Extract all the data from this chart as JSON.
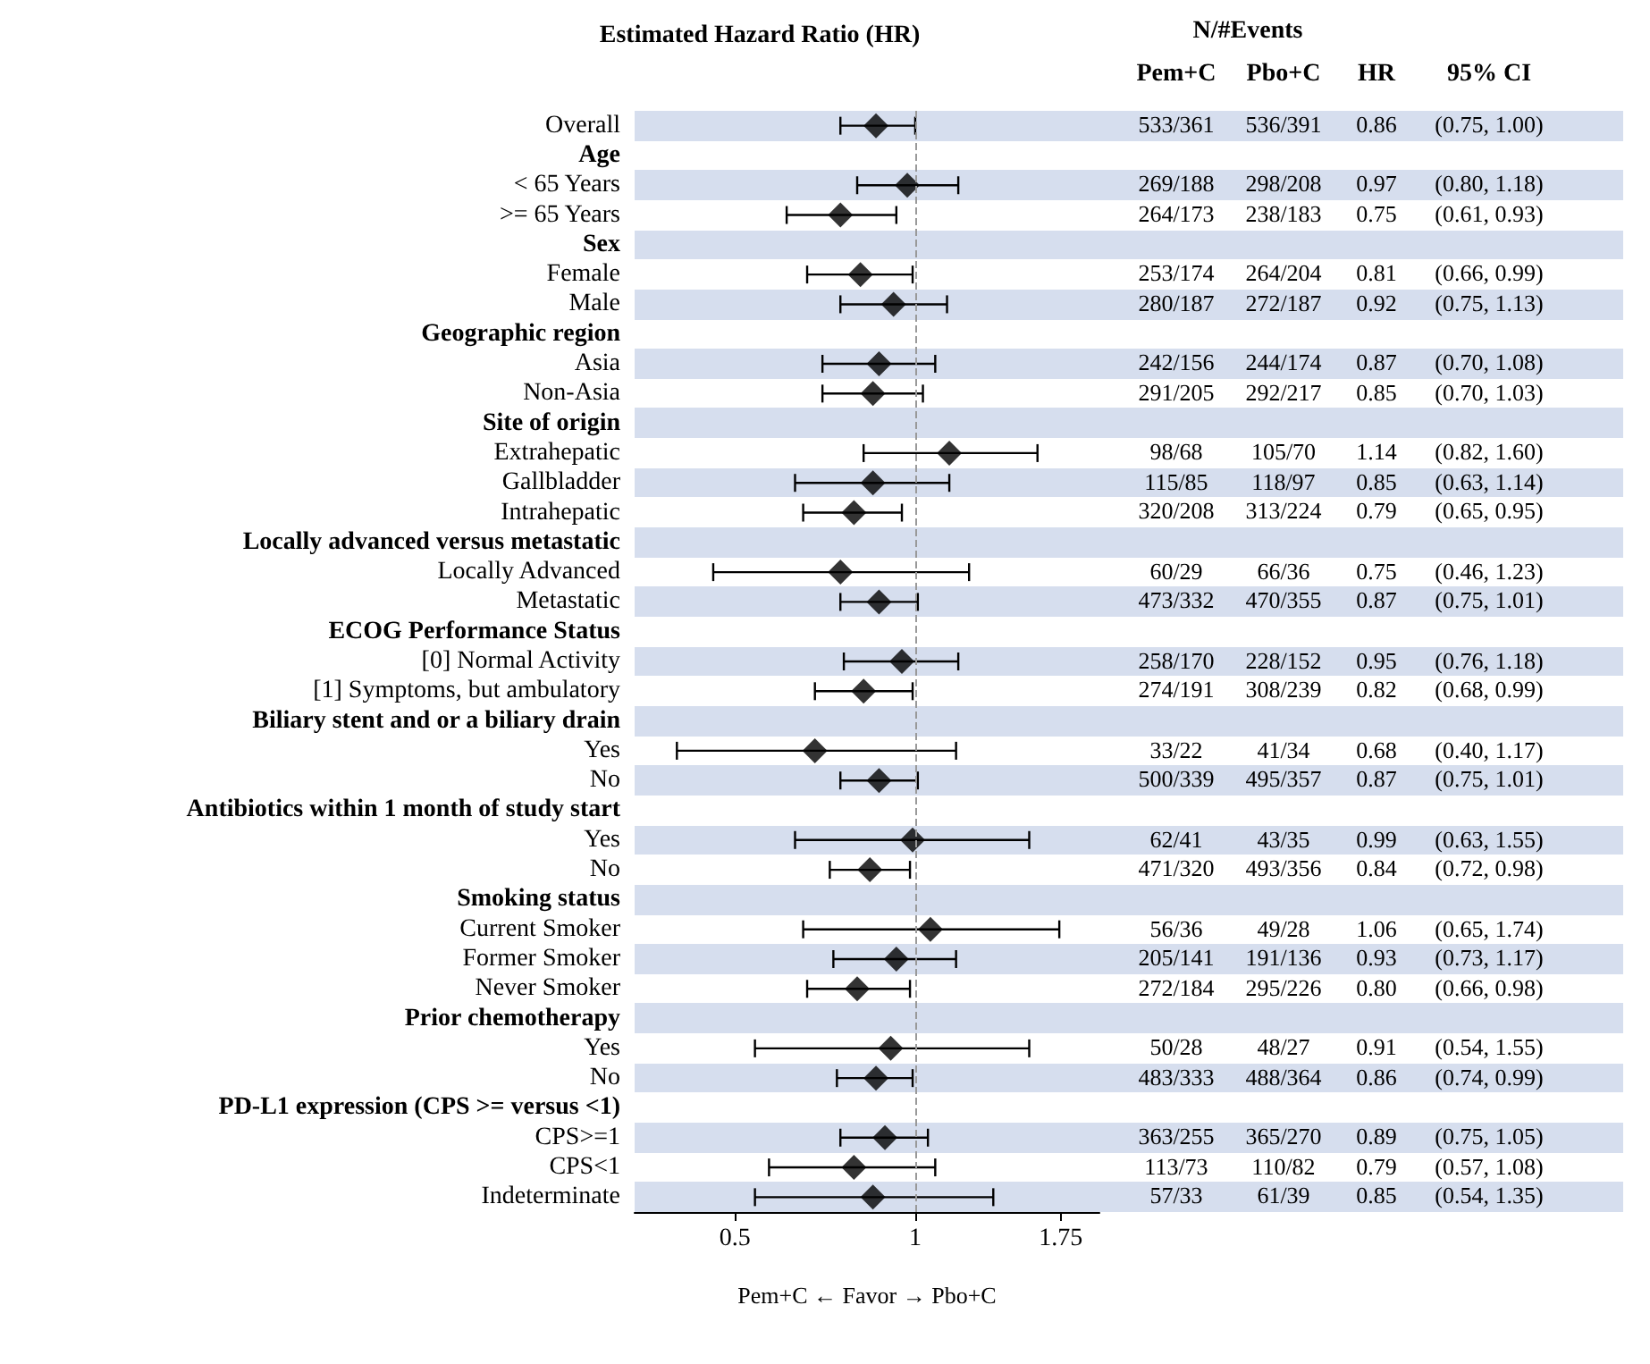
{
  "chart_data": [
    {
      "type": "scatter",
      "title": "Estimated Hazard Ratio (HR)",
      "xlabel": "Pem+C ← Favor → Pbo+C",
      "orientation": "horizontal",
      "log": "x",
      "marker": "diamond",
      "color": "#000000",
      "xlim": [
        0.34,
        2.03
      ],
      "xticks": [
        0.5,
        1,
        1.75
      ],
      "categories": [
        "Overall",
        "Age",
        "< 65 Years",
        ">= 65 Years",
        "Sex",
        "Female",
        "Male",
        "Geographic region",
        "Asia",
        "Non-Asia",
        "Site of origin",
        "Extrahepatic",
        "Gallbladder",
        "Intrahepatic",
        "Locally advanced versus metastatic",
        "Locally Advanced",
        "Metastatic",
        "ECOG Performance Status",
        "[0] Normal Activity",
        "[1] Symptoms, but ambulatory",
        "Biliary stent and or a biliary drain",
        "Yes",
        "No",
        "Antibiotics within 1 month of study start",
        "Yes",
        "No",
        "Smoking status",
        "Current Smoker",
        "Former Smoker",
        "Never Smoker",
        "Prior chemotherapy",
        "Yes",
        "No",
        "PD-L1 expression (CPS >= versus <1)",
        "CPS>=1",
        "CPS<1",
        "Indeterminate"
      ],
      "values": [
        0.86,
        null,
        0.97,
        0.75,
        null,
        0.81,
        0.92,
        null,
        0.87,
        0.85,
        null,
        1.14,
        0.85,
        0.79,
        null,
        0.75,
        0.87,
        null,
        0.95,
        0.82,
        null,
        0.68,
        0.87,
        null,
        0.99,
        0.84,
        null,
        1.06,
        0.93,
        0.8,
        null,
        0.91,
        0.86,
        null,
        0.89,
        0.79,
        0.85
      ],
      "errors": [
        [
          0.75,
          1.0
        ],
        null,
        [
          0.8,
          1.18
        ],
        [
          0.61,
          0.93
        ],
        null,
        [
          0.66,
          0.99
        ],
        [
          0.75,
          1.13
        ],
        null,
        [
          0.7,
          1.08
        ],
        [
          0.7,
          1.03
        ],
        null,
        [
          0.82,
          1.6
        ],
        [
          0.63,
          1.14
        ],
        [
          0.65,
          0.95
        ],
        null,
        [
          0.46,
          1.23
        ],
        [
          0.75,
          1.01
        ],
        null,
        [
          0.76,
          1.18
        ],
        [
          0.68,
          0.99
        ],
        null,
        [
          0.4,
          1.17
        ],
        [
          0.75,
          1.01
        ],
        null,
        [
          0.63,
          1.55
        ],
        [
          0.72,
          0.98
        ],
        null,
        [
          0.65,
          1.74
        ],
        [
          0.73,
          1.17
        ],
        [
          0.66,
          0.98
        ],
        null,
        [
          0.54,
          1.55
        ],
        [
          0.74,
          0.99
        ],
        null,
        [
          0.75,
          1.05
        ],
        [
          0.57,
          1.08
        ],
        [
          0.54,
          1.35
        ]
      ],
      "ref_lines": [
        {
          "axis": "x",
          "value": 1,
          "color": "#999999",
          "line_style": "dashed"
        }
      ]
    },
    {
      "type": "other",
      "title": "N/#Events",
      "categories": [
        "Pem+C",
        "Pbo+C",
        "HR",
        "95% CI"
      ],
      "cell_labels": [
        [
          "533/361",
          "536/391",
          "0.86",
          "(0.75, 1.00)"
        ],
        null,
        [
          "269/188",
          "298/208",
          "0.97",
          "(0.80, 1.18)"
        ],
        [
          "264/173",
          "238/183",
          "0.75",
          "(0.61, 0.93)"
        ],
        null,
        [
          "253/174",
          "264/204",
          "0.81",
          "(0.66, 0.99)"
        ],
        [
          "280/187",
          "272/187",
          "0.92",
          "(0.75, 1.13)"
        ],
        null,
        [
          "242/156",
          "244/174",
          "0.87",
          "(0.70, 1.08)"
        ],
        [
          "291/205",
          "292/217",
          "0.85",
          "(0.70, 1.03)"
        ],
        null,
        [
          "98/68",
          "105/70",
          "1.14",
          "(0.82, 1.60)"
        ],
        [
          "115/85",
          "118/97",
          "0.85",
          "(0.63, 1.14)"
        ],
        [
          "320/208",
          "313/224",
          "0.79",
          "(0.65, 0.95)"
        ],
        null,
        [
          "60/29",
          "66/36",
          "0.75",
          "(0.46, 1.23)"
        ],
        [
          "473/332",
          "470/355",
          "0.87",
          "(0.75, 1.01)"
        ],
        null,
        [
          "258/170",
          "228/152",
          "0.95",
          "(0.76, 1.18)"
        ],
        [
          "274/191",
          "308/239",
          "0.82",
          "(0.68, 0.99)"
        ],
        null,
        [
          "33/22",
          "41/34",
          "0.68",
          "(0.40, 1.17)"
        ],
        [
          "500/339",
          "495/357",
          "0.87",
          "(0.75, 1.01)"
        ],
        null,
        [
          "62/41",
          "43/35",
          "0.99",
          "(0.63, 1.55)"
        ],
        [
          "471/320",
          "493/356",
          "0.84",
          "(0.72, 0.98)"
        ],
        null,
        [
          "56/36",
          "49/28",
          "1.06",
          "(0.65, 1.74)"
        ],
        [
          "205/141",
          "191/136",
          "0.93",
          "(0.73, 1.17)"
        ],
        [
          "272/184",
          "295/226",
          "0.80",
          "(0.66, 0.98)"
        ],
        null,
        [
          "50/28",
          "48/27",
          "0.91",
          "(0.54, 1.55)"
        ],
        [
          "483/333",
          "488/364",
          "0.86",
          "(0.74, 0.99)"
        ],
        null,
        [
          "363/255",
          "365/270",
          "0.89",
          "(0.75, 1.05)"
        ],
        [
          "113/73",
          "110/82",
          "0.79",
          "(0.57, 1.08)"
        ],
        [
          "57/33",
          "61/39",
          "0.85",
          "(0.54, 1.35)"
        ]
      ]
    }
  ]
}
